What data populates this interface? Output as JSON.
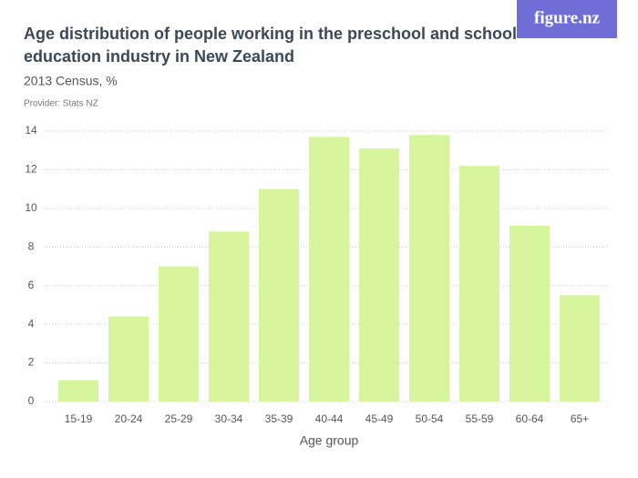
{
  "logo": "figure.nz",
  "chart_data": {
    "type": "bar",
    "title": [
      "Age distribution of people working in the preschool and school",
      "education industry in New Zealand"
    ],
    "subtitle": "2013 Census, %",
    "provider": "Provider: Stats NZ",
    "x_label": "Age group",
    "categories": [
      "15-19",
      "20-24",
      "25-29",
      "30-34",
      "35-39",
      "40-44",
      "45-49",
      "50-54",
      "55-59",
      "60-64",
      "65+"
    ],
    "values": [
      1.1,
      4.4,
      7.0,
      8.8,
      11.0,
      13.7,
      13.1,
      13.8,
      12.2,
      9.1,
      5.5
    ],
    "color": "#d6f59d",
    "ylim": [
      0,
      14
    ],
    "yticks": [
      0,
      2,
      4,
      6,
      8,
      10,
      12,
      14
    ],
    "grid": true
  }
}
